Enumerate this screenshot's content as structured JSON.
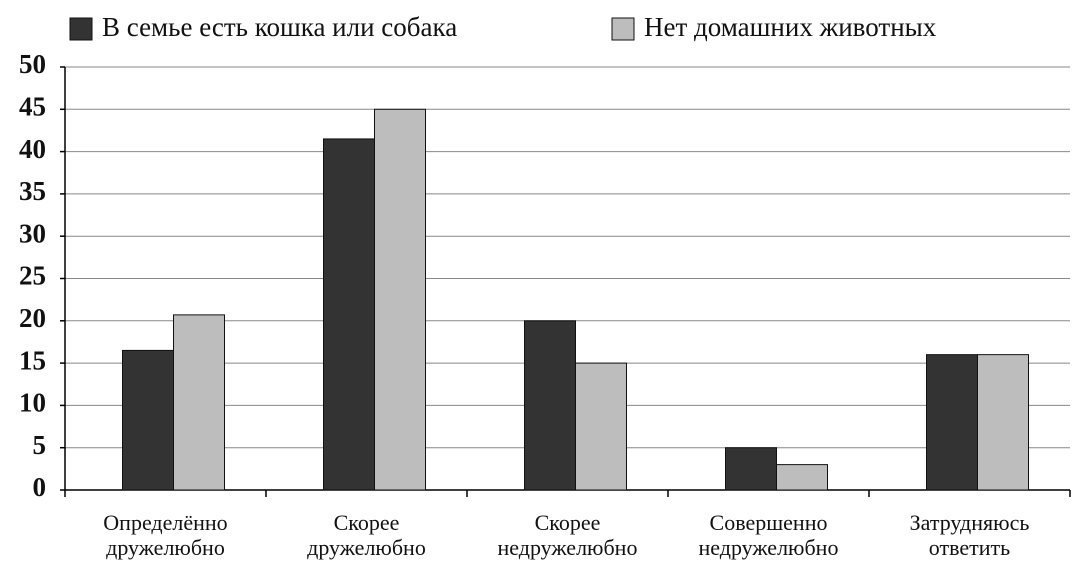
{
  "chart_data": {
    "type": "bar",
    "categories": [
      "Определённо дружелюбно",
      "Скорее дружелюбно",
      "Скорее недружелюбно",
      "Совершенно недружелюбно",
      "Затрудняюсь ответить"
    ],
    "series": [
      {
        "name": "В семье есть кошка или собака",
        "color": "#333333",
        "values": [
          16.5,
          41.5,
          20,
          5,
          16
        ]
      },
      {
        "name": "Нет домашних животных",
        "color": "#bdbdbd",
        "values": [
          20.7,
          45,
          15,
          3,
          16
        ]
      }
    ],
    "ylim": [
      0,
      50
    ],
    "yticks": [
      0,
      5,
      10,
      15,
      20,
      25,
      30,
      35,
      40,
      45,
      50
    ],
    "grid": true,
    "legend": "top"
  }
}
